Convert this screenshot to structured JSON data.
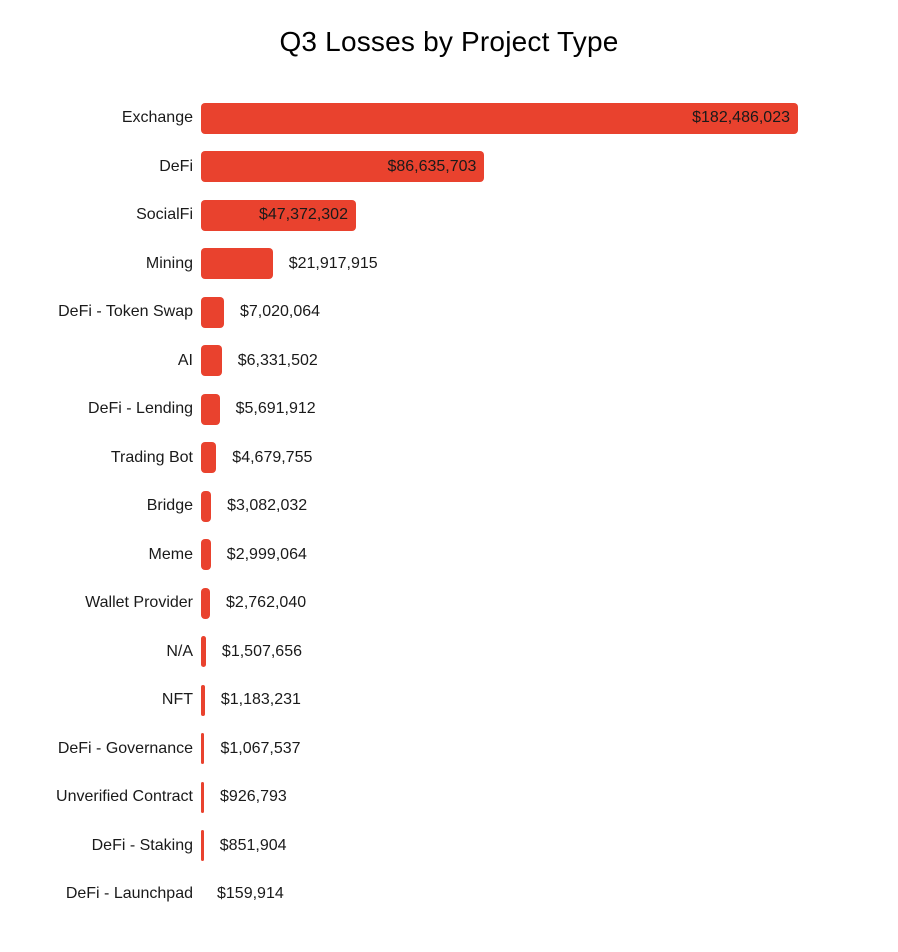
{
  "chart_data": {
    "type": "bar",
    "orientation": "horizontal",
    "title": "Q3 Losses by Project Type",
    "categories": [
      "Exchange",
      "DeFi",
      "SocialFi",
      "Mining",
      "DeFi - Token Swap",
      "AI",
      "DeFi - Lending",
      "Trading Bot",
      "Bridge",
      "Meme",
      "Wallet Provider",
      "N/A",
      "NFT",
      "DeFi - Governance",
      "Unverified Contract",
      "DeFi - Staking",
      "DeFi - Launchpad"
    ],
    "values": [
      182486023,
      86635703,
      47372302,
      21917915,
      7020064,
      6331502,
      5691912,
      4679755,
      3082032,
      2999064,
      2762040,
      1507656,
      1183231,
      1067537,
      926793,
      851904,
      159914
    ],
    "value_labels": [
      "$182,486,023",
      "$86,635,703",
      "$47,372,302",
      "$21,917,915",
      "$7,020,064",
      "$6,331,502",
      "$5,691,912",
      "$4,679,755",
      "$3,082,032",
      "$2,999,064",
      "$2,762,040",
      "$1,507,656",
      "$1,183,231",
      "$1,067,537",
      "$926,793",
      "$851,904",
      "$159,914"
    ],
    "xlim": [
      0,
      182486023
    ],
    "xlabel": "",
    "ylabel": "",
    "grid": false,
    "legend": "none",
    "bar_color": "#E9422E",
    "label_color": "#1a1a1a",
    "title_color": "#000000",
    "background": "#FFFFFF"
  }
}
